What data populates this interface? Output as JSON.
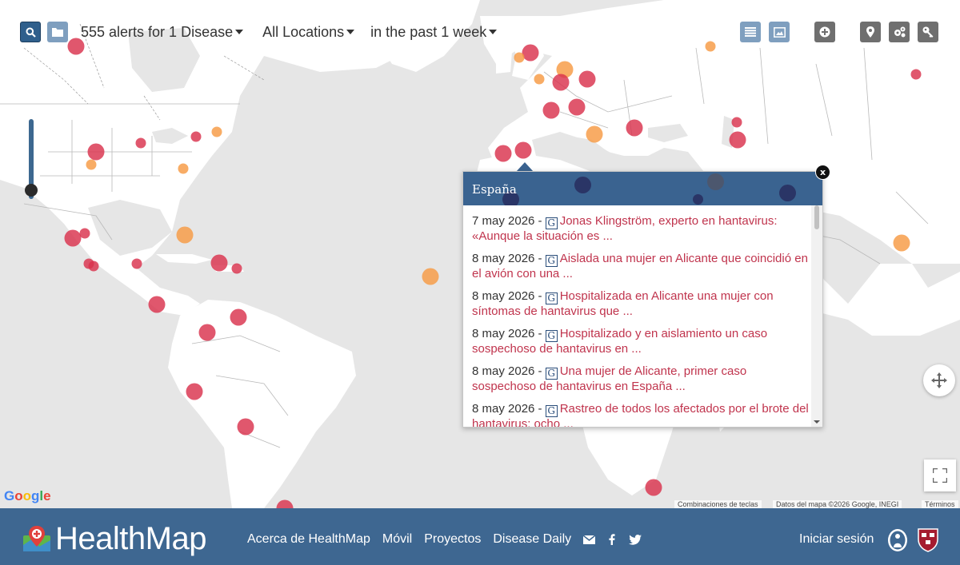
{
  "toolbar": {
    "alerts_filter": "555 alerts for 1 Disease",
    "location_filter": "All Locations",
    "time_filter": "in the past 1 week",
    "search_icon": "search-icon",
    "folder_icon": "folder-icon"
  },
  "right_buttons": [
    "list-view-icon",
    "image-view-icon",
    "plus-circle-icon",
    "map-marker-icon",
    "settings-icon",
    "key-icon"
  ],
  "map": {
    "google_logo": "Google",
    "attribution": [
      "Combinaciones de teclas",
      "Datos del mapa ©2026 Google, INEGI",
      "Términos"
    ],
    "colors": {
      "red": "#d9324d",
      "orange": "#f79a43",
      "navy": "#2d3b74"
    }
  },
  "popup": {
    "title": "España",
    "close": "x",
    "source_icon": "G",
    "entries": [
      {
        "date": "7 may 2026 -",
        "headline": "Jonas Klingström, experto en hantavirus: «Aunque la situación es ..."
      },
      {
        "date": "8 may 2026 -",
        "headline": "Aislada una mujer en Alicante que coincidió en el avión con una ..."
      },
      {
        "date": "8 may 2026 -",
        "headline": "Hospitalizada en Alicante una mujer con síntomas de hantavirus que ..."
      },
      {
        "date": "8 may 2026 -",
        "headline": "Hospitalizado y en aislamiento un caso sospechoso de hantavirus en ..."
      },
      {
        "date": "8 may 2026 -",
        "headline": "Una mujer de Alicante, primer caso sospechoso de hantavirus en España ..."
      },
      {
        "date": "8 may 2026 -",
        "headline": "Rastreo de todos los afectados por el brote del hantavirus: ocho ..."
      }
    ]
  },
  "footer": {
    "brand": "HealthMap",
    "nav": [
      "Acerca de HealthMap",
      "Móvil",
      "Proyectos",
      "Disease Daily"
    ],
    "login": "Iniciar sesión"
  },
  "colors": {
    "footer_bg": "#3e6791",
    "popup_header": "#3a6390",
    "link": "#c0344d"
  }
}
